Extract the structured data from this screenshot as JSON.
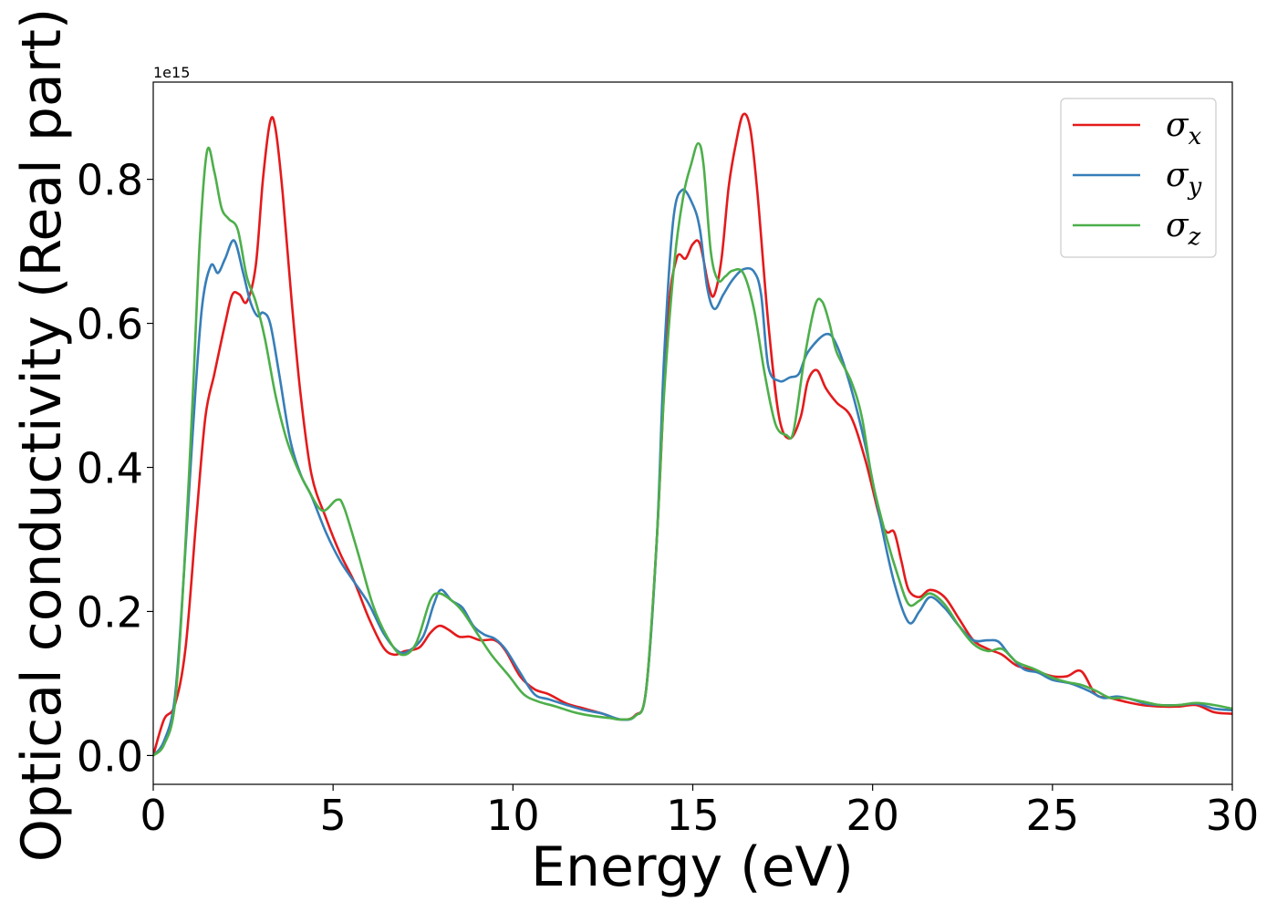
{
  "chart_data": {
    "type": "line",
    "xlabel": "Energy (eV)",
    "ylabel": "Optical conductivity (Real part)",
    "offset_text": "1e15",
    "xlim": [
      0,
      30
    ],
    "ylim": [
      -0.04,
      0.935
    ],
    "x_ticks": [
      0,
      5,
      10,
      15,
      20,
      25,
      30
    ],
    "x_tick_labels": [
      "0",
      "5",
      "10",
      "15",
      "20",
      "25",
      "30"
    ],
    "y_ticks": [
      0.0,
      0.2,
      0.4,
      0.6,
      0.8
    ],
    "y_tick_labels": [
      "0.0",
      "0.2",
      "0.4",
      "0.6",
      "0.8"
    ],
    "grid": false,
    "legend_position": "top-right",
    "series": [
      {
        "name": "σx",
        "legend_base": "σ",
        "legend_sub": "x",
        "color": "#e41a1c",
        "points": [
          [
            0,
            0
          ],
          [
            0.3,
            0.05
          ],
          [
            0.6,
            0.07
          ],
          [
            0.9,
            0.15
          ],
          [
            1.2,
            0.33
          ],
          [
            1.45,
            0.47
          ],
          [
            1.7,
            0.53
          ],
          [
            2.0,
            0.6
          ],
          [
            2.2,
            0.64
          ],
          [
            2.4,
            0.64
          ],
          [
            2.6,
            0.63
          ],
          [
            2.85,
            0.68
          ],
          [
            3.05,
            0.8
          ],
          [
            3.25,
            0.88
          ],
          [
            3.4,
            0.87
          ],
          [
            3.6,
            0.78
          ],
          [
            3.85,
            0.63
          ],
          [
            4.1,
            0.5
          ],
          [
            4.4,
            0.39
          ],
          [
            4.8,
            0.33
          ],
          [
            5.2,
            0.28
          ],
          [
            5.6,
            0.24
          ],
          [
            6.0,
            0.19
          ],
          [
            6.4,
            0.15
          ],
          [
            6.7,
            0.14
          ],
          [
            7.0,
            0.145
          ],
          [
            7.4,
            0.15
          ],
          [
            7.7,
            0.17
          ],
          [
            7.95,
            0.18
          ],
          [
            8.2,
            0.175
          ],
          [
            8.5,
            0.165
          ],
          [
            8.8,
            0.165
          ],
          [
            9.1,
            0.16
          ],
          [
            9.5,
            0.16
          ],
          [
            9.8,
            0.145
          ],
          [
            10.2,
            0.11
          ],
          [
            10.6,
            0.092
          ],
          [
            11.0,
            0.085
          ],
          [
            11.5,
            0.072
          ],
          [
            12.0,
            0.065
          ],
          [
            12.5,
            0.058
          ],
          [
            13.0,
            0.05
          ],
          [
            13.4,
            0.056
          ],
          [
            13.7,
            0.09
          ],
          [
            14.0,
            0.3
          ],
          [
            14.3,
            0.6
          ],
          [
            14.55,
            0.69
          ],
          [
            14.8,
            0.69
          ],
          [
            15.0,
            0.71
          ],
          [
            15.2,
            0.71
          ],
          [
            15.45,
            0.65
          ],
          [
            15.6,
            0.64
          ],
          [
            15.8,
            0.69
          ],
          [
            16.0,
            0.79
          ],
          [
            16.2,
            0.85
          ],
          [
            16.4,
            0.89
          ],
          [
            16.6,
            0.87
          ],
          [
            16.8,
            0.78
          ],
          [
            17.1,
            0.6
          ],
          [
            17.4,
            0.47
          ],
          [
            17.7,
            0.44
          ],
          [
            18.0,
            0.47
          ],
          [
            18.2,
            0.52
          ],
          [
            18.45,
            0.535
          ],
          [
            18.7,
            0.51
          ],
          [
            19.0,
            0.49
          ],
          [
            19.4,
            0.47
          ],
          [
            19.8,
            0.41
          ],
          [
            20.2,
            0.33
          ],
          [
            20.4,
            0.31
          ],
          [
            20.6,
            0.31
          ],
          [
            20.8,
            0.27
          ],
          [
            21.0,
            0.23
          ],
          [
            21.3,
            0.22
          ],
          [
            21.6,
            0.23
          ],
          [
            22.0,
            0.22
          ],
          [
            22.4,
            0.19
          ],
          [
            22.8,
            0.16
          ],
          [
            23.2,
            0.148
          ],
          [
            23.6,
            0.14
          ],
          [
            24.0,
            0.125
          ],
          [
            24.5,
            0.118
          ],
          [
            25.0,
            0.11
          ],
          [
            25.4,
            0.11
          ],
          [
            25.8,
            0.117
          ],
          [
            26.2,
            0.085
          ],
          [
            26.6,
            0.08
          ],
          [
            27.0,
            0.075
          ],
          [
            27.5,
            0.07
          ],
          [
            28.0,
            0.068
          ],
          [
            28.5,
            0.068
          ],
          [
            29.0,
            0.07
          ],
          [
            29.5,
            0.06
          ],
          [
            30,
            0.058
          ]
        ]
      },
      {
        "name": "σy",
        "legend_base": "σ",
        "legend_sub": "y",
        "color": "#377eb8",
        "points": [
          [
            0,
            0
          ],
          [
            0.3,
            0.02
          ],
          [
            0.6,
            0.08
          ],
          [
            0.85,
            0.25
          ],
          [
            1.1,
            0.45
          ],
          [
            1.35,
            0.62
          ],
          [
            1.6,
            0.68
          ],
          [
            1.8,
            0.67
          ],
          [
            2.0,
            0.69
          ],
          [
            2.25,
            0.715
          ],
          [
            2.5,
            0.67
          ],
          [
            2.7,
            0.63
          ],
          [
            2.9,
            0.61
          ],
          [
            3.05,
            0.615
          ],
          [
            3.25,
            0.6
          ],
          [
            3.5,
            0.53
          ],
          [
            3.8,
            0.44
          ],
          [
            4.1,
            0.39
          ],
          [
            4.4,
            0.36
          ],
          [
            4.8,
            0.31
          ],
          [
            5.2,
            0.27
          ],
          [
            5.6,
            0.24
          ],
          [
            6.0,
            0.21
          ],
          [
            6.4,
            0.17
          ],
          [
            6.8,
            0.145
          ],
          [
            7.1,
            0.145
          ],
          [
            7.5,
            0.165
          ],
          [
            7.8,
            0.21
          ],
          [
            8.0,
            0.23
          ],
          [
            8.3,
            0.215
          ],
          [
            8.6,
            0.205
          ],
          [
            8.9,
            0.18
          ],
          [
            9.2,
            0.168
          ],
          [
            9.5,
            0.162
          ],
          [
            9.8,
            0.147
          ],
          [
            10.2,
            0.115
          ],
          [
            10.6,
            0.085
          ],
          [
            11.0,
            0.078
          ],
          [
            11.5,
            0.07
          ],
          [
            12.0,
            0.063
          ],
          [
            12.5,
            0.058
          ],
          [
            13.0,
            0.05
          ],
          [
            13.4,
            0.055
          ],
          [
            13.7,
            0.09
          ],
          [
            14.0,
            0.3
          ],
          [
            14.2,
            0.55
          ],
          [
            14.45,
            0.74
          ],
          [
            14.7,
            0.785
          ],
          [
            15.0,
            0.765
          ],
          [
            15.2,
            0.73
          ],
          [
            15.4,
            0.65
          ],
          [
            15.6,
            0.62
          ],
          [
            15.85,
            0.64
          ],
          [
            16.1,
            0.66
          ],
          [
            16.4,
            0.675
          ],
          [
            16.7,
            0.672
          ],
          [
            16.9,
            0.64
          ],
          [
            17.1,
            0.54
          ],
          [
            17.4,
            0.52
          ],
          [
            17.7,
            0.525
          ],
          [
            17.95,
            0.53
          ],
          [
            18.2,
            0.56
          ],
          [
            18.7,
            0.585
          ],
          [
            19.0,
            0.57
          ],
          [
            19.4,
            0.51
          ],
          [
            19.8,
            0.43
          ],
          [
            20.2,
            0.33
          ],
          [
            20.6,
            0.24
          ],
          [
            21.0,
            0.185
          ],
          [
            21.3,
            0.2
          ],
          [
            21.6,
            0.22
          ],
          [
            22.0,
            0.205
          ],
          [
            22.4,
            0.18
          ],
          [
            22.8,
            0.16
          ],
          [
            23.2,
            0.16
          ],
          [
            23.5,
            0.158
          ],
          [
            23.8,
            0.14
          ],
          [
            24.2,
            0.12
          ],
          [
            24.6,
            0.115
          ],
          [
            25.0,
            0.105
          ],
          [
            25.5,
            0.1
          ],
          [
            26.0,
            0.09
          ],
          [
            26.4,
            0.08
          ],
          [
            26.8,
            0.082
          ],
          [
            27.2,
            0.078
          ],
          [
            27.6,
            0.072
          ],
          [
            28.0,
            0.07
          ],
          [
            28.5,
            0.07
          ],
          [
            29.0,
            0.072
          ],
          [
            29.5,
            0.065
          ],
          [
            30,
            0.063
          ]
        ]
      },
      {
        "name": "σz",
        "legend_base": "σ",
        "legend_sub": "z",
        "color": "#4daf4a",
        "points": [
          [
            0,
            0
          ],
          [
            0.3,
            0.015
          ],
          [
            0.6,
            0.07
          ],
          [
            0.85,
            0.25
          ],
          [
            1.1,
            0.5
          ],
          [
            1.3,
            0.72
          ],
          [
            1.5,
            0.84
          ],
          [
            1.7,
            0.81
          ],
          [
            1.9,
            0.76
          ],
          [
            2.1,
            0.745
          ],
          [
            2.35,
            0.73
          ],
          [
            2.6,
            0.665
          ],
          [
            2.85,
            0.63
          ],
          [
            3.1,
            0.58
          ],
          [
            3.4,
            0.5
          ],
          [
            3.7,
            0.44
          ],
          [
            4.0,
            0.4
          ],
          [
            4.3,
            0.37
          ],
          [
            4.7,
            0.34
          ],
          [
            5.1,
            0.355
          ],
          [
            5.3,
            0.345
          ],
          [
            5.7,
            0.28
          ],
          [
            6.1,
            0.21
          ],
          [
            6.5,
            0.165
          ],
          [
            6.9,
            0.14
          ],
          [
            7.3,
            0.155
          ],
          [
            7.7,
            0.215
          ],
          [
            7.95,
            0.225
          ],
          [
            8.3,
            0.215
          ],
          [
            8.6,
            0.2
          ],
          [
            9.0,
            0.17
          ],
          [
            9.4,
            0.14
          ],
          [
            9.9,
            0.11
          ],
          [
            10.3,
            0.085
          ],
          [
            10.7,
            0.075
          ],
          [
            11.2,
            0.068
          ],
          [
            11.7,
            0.06
          ],
          [
            12.2,
            0.055
          ],
          [
            12.7,
            0.052
          ],
          [
            13.0,
            0.05
          ],
          [
            13.4,
            0.055
          ],
          [
            13.7,
            0.09
          ],
          [
            14.0,
            0.3
          ],
          [
            14.2,
            0.5
          ],
          [
            14.5,
            0.69
          ],
          [
            14.75,
            0.78
          ],
          [
            14.95,
            0.82
          ],
          [
            15.15,
            0.85
          ],
          [
            15.3,
            0.82
          ],
          [
            15.5,
            0.7
          ],
          [
            15.7,
            0.66
          ],
          [
            15.9,
            0.665
          ],
          [
            16.1,
            0.673
          ],
          [
            16.4,
            0.67
          ],
          [
            16.7,
            0.62
          ],
          [
            17.0,
            0.53
          ],
          [
            17.3,
            0.46
          ],
          [
            17.6,
            0.445
          ],
          [
            17.8,
            0.45
          ],
          [
            18.1,
            0.55
          ],
          [
            18.4,
            0.625
          ],
          [
            18.6,
            0.63
          ],
          [
            18.8,
            0.6
          ],
          [
            19.0,
            0.56
          ],
          [
            19.4,
            0.52
          ],
          [
            19.7,
            0.47
          ],
          [
            20.0,
            0.38
          ],
          [
            20.4,
            0.3
          ],
          [
            20.7,
            0.25
          ],
          [
            21.0,
            0.21
          ],
          [
            21.3,
            0.215
          ],
          [
            21.6,
            0.225
          ],
          [
            22.0,
            0.21
          ],
          [
            22.4,
            0.18
          ],
          [
            22.8,
            0.155
          ],
          [
            23.2,
            0.145
          ],
          [
            23.6,
            0.148
          ],
          [
            24.0,
            0.13
          ],
          [
            24.5,
            0.12
          ],
          [
            25.0,
            0.108
          ],
          [
            25.4,
            0.102
          ],
          [
            25.8,
            0.098
          ],
          [
            26.2,
            0.09
          ],
          [
            26.6,
            0.08
          ],
          [
            27.0,
            0.08
          ],
          [
            27.5,
            0.075
          ],
          [
            28.0,
            0.07
          ],
          [
            28.5,
            0.07
          ],
          [
            29.0,
            0.073
          ],
          [
            29.5,
            0.07
          ],
          [
            30,
            0.065
          ]
        ]
      }
    ]
  }
}
